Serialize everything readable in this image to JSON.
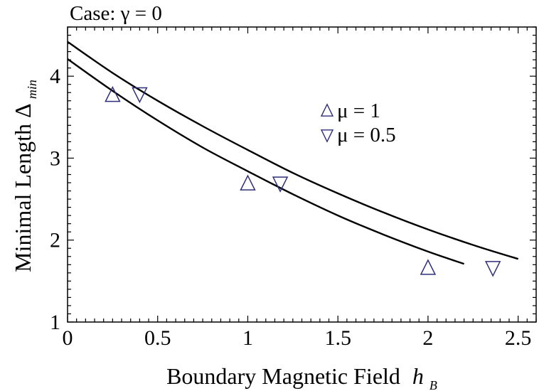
{
  "chart_data": {
    "type": "line",
    "title": "Case: γ = 0",
    "xlabel": "Boundary Magnetic Field",
    "xlabel_var": "h",
    "xlabel_sub": "B",
    "ylabel": "Minimal Length Δ",
    "ylabel_sub": "min",
    "xlim": [
      0,
      2.6
    ],
    "ylim": [
      1,
      4.6
    ],
    "xticks": [
      0,
      0.5,
      1,
      1.5,
      2,
      2.5
    ],
    "xtick_labels": [
      "0",
      "0.5",
      "1",
      "1.5",
      "2",
      "2.5"
    ],
    "yticks": [
      1,
      2,
      3,
      4
    ],
    "ytick_labels": [
      "1",
      "2",
      "3",
      "4"
    ],
    "grid": false,
    "legend_position": "top-right",
    "series": [
      {
        "name": "μ = 1",
        "marker": "triangle-up",
        "x": [
          0,
          0.25,
          0.5,
          0.75,
          1.0,
          1.25,
          1.5,
          1.75,
          2.0,
          2.2
        ],
        "y": [
          4.21,
          3.82,
          3.46,
          3.13,
          2.84,
          2.56,
          2.3,
          2.07,
          1.86,
          1.71
        ],
        "markers": [
          {
            "x": 0.25,
            "y": 3.77
          },
          {
            "x": 1.0,
            "y": 2.69
          },
          {
            "x": 2.0,
            "y": 1.66
          }
        ]
      },
      {
        "name": "μ = 0.5",
        "marker": "triangle-down",
        "x": [
          0,
          0.25,
          0.5,
          0.75,
          1.0,
          1.25,
          1.5,
          1.75,
          2.0,
          2.25,
          2.5
        ],
        "y": [
          4.42,
          4.04,
          3.7,
          3.39,
          3.1,
          2.82,
          2.57,
          2.34,
          2.13,
          1.94,
          1.77
        ],
        "markers": [
          {
            "x": 0.4,
            "y": 3.78
          },
          {
            "x": 1.18,
            "y": 2.69
          },
          {
            "x": 2.36,
            "y": 1.66
          }
        ]
      }
    ],
    "colors": {
      "curve": "#000000",
      "marker": "#2e2e7a",
      "axis": "#000000"
    }
  }
}
